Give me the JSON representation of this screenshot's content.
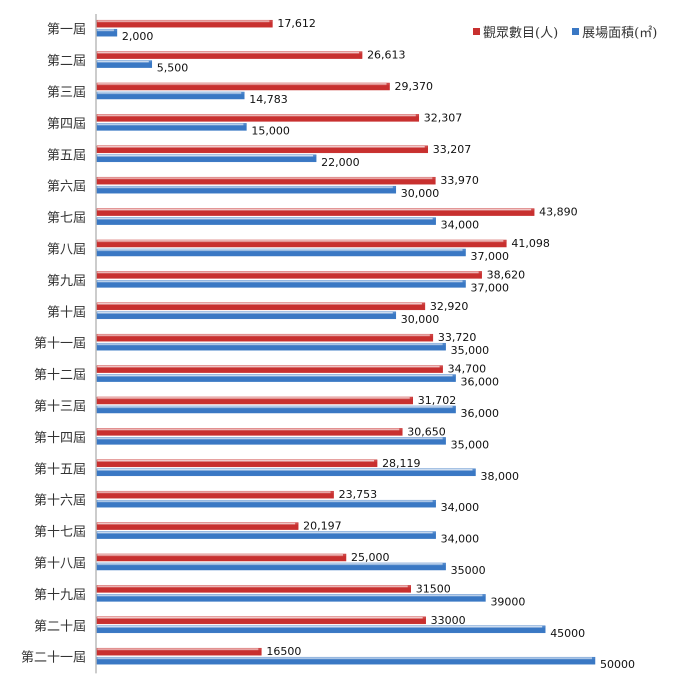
{
  "chart_data": {
    "type": "bar",
    "orientation": "horizontal",
    "categories": [
      "第一屆",
      "第二屆",
      "第三屆",
      "第四屆",
      "第五屆",
      "第六屆",
      "第七屆",
      "第八屆",
      "第九屆",
      "第十屆",
      "第十一屆",
      "第十二屆",
      "第十三屆",
      "第十四屆",
      "第十五屆",
      "第十六屆",
      "第十七屆",
      "第十八屆",
      "第十九屆",
      "第二十屆",
      "第二十一屆"
    ],
    "series": [
      {
        "name": "觀眾數目(人)",
        "color": "#c8302f",
        "values": [
          17612,
          26613,
          29370,
          32307,
          33207,
          33970,
          43890,
          41098,
          38620,
          32920,
          33720,
          34700,
          31702,
          30650,
          28119,
          23753,
          20197,
          25000,
          31500,
          33000,
          16500
        ],
        "labels": [
          "17,612",
          "26,613",
          "29,370",
          "32,307",
          "33,207",
          "33,970",
          "43,890",
          "41,098",
          "38,620",
          "32,920",
          "33,720",
          "34,700",
          "31,702",
          "30,650",
          "28,119",
          "23,753",
          "20,197",
          "25,000",
          "31500",
          "33000",
          "16500"
        ]
      },
      {
        "name": "展場面積(㎡)",
        "color": "#3a78c4",
        "values": [
          2000,
          5500,
          14783,
          15000,
          22000,
          30000,
          34000,
          37000,
          37000,
          30000,
          35000,
          36000,
          36000,
          35000,
          38000,
          34000,
          34000,
          35000,
          39000,
          45000,
          50000
        ],
        "labels": [
          "2,000",
          "5,500",
          "14,783",
          "15,000",
          "22,000",
          "30,000",
          "34,000",
          "37,000",
          "37,000",
          "30,000",
          "35,000",
          "36,000",
          "36,000",
          "35,000",
          "38,000",
          "34,000",
          "34,000",
          "35000",
          "39000",
          "45000",
          "50000"
        ]
      }
    ],
    "xlim": [
      0,
      50000
    ],
    "grid": false,
    "legend_position": "top-right"
  }
}
